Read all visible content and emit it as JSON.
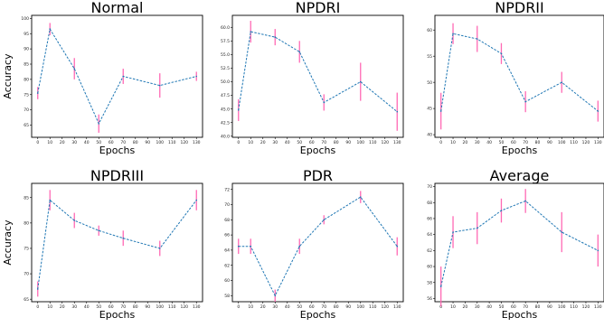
{
  "chart_data": [
    {
      "type": "line",
      "title": "Normal",
      "xlabel": "Epochs",
      "ylabel": "Accuracy",
      "x": [
        0,
        10,
        30,
        50,
        70,
        100,
        130
      ],
      "values": [
        75.5,
        96.5,
        83.5,
        65.5,
        81.0,
        78.0,
        81.0
      ],
      "errors": [
        2.0,
        2.0,
        3.5,
        3.0,
        2.5,
        4.0,
        1.5
      ],
      "xlim": [
        -5,
        135
      ],
      "ylim": [
        61,
        101
      ],
      "xticks": [
        0,
        10,
        20,
        30,
        40,
        50,
        60,
        70,
        80,
        90,
        100,
        110,
        120,
        130
      ],
      "yticks": [
        65,
        70,
        75,
        80,
        85,
        90,
        95,
        100
      ]
    },
    {
      "type": "line",
      "title": "NPDRI",
      "xlabel": "Epochs",
      "ylabel": "",
      "x": [
        0,
        10,
        30,
        50,
        70,
        100,
        130
      ],
      "values": [
        44.8,
        59.2,
        58.2,
        55.5,
        46.2,
        50.0,
        44.5
      ],
      "errors": [
        2.0,
        2.0,
        1.5,
        2.0,
        1.5,
        3.5,
        3.5
      ],
      "xlim": [
        -5,
        135
      ],
      "ylim": [
        39.8,
        62.2
      ],
      "xticks": [
        0,
        10,
        20,
        30,
        40,
        50,
        60,
        70,
        80,
        90,
        100,
        110,
        120,
        130
      ],
      "yticks": [
        40.0,
        42.5,
        45.0,
        47.5,
        50.0,
        52.5,
        55.0,
        57.5,
        60.0
      ]
    },
    {
      "type": "line",
      "title": "NPDRII",
      "xlabel": "Epochs",
      "ylabel": "",
      "x": [
        0,
        10,
        30,
        50,
        70,
        100,
        130
      ],
      "values": [
        44.5,
        59.3,
        58.3,
        55.5,
        46.3,
        50.0,
        44.5
      ],
      "errors": [
        3.5,
        2.0,
        2.5,
        2.0,
        2.0,
        2.0,
        2.0
      ],
      "xlim": [
        -5,
        135
      ],
      "ylim": [
        39.5,
        62.8
      ],
      "xticks": [
        0,
        10,
        20,
        30,
        40,
        50,
        60,
        70,
        80,
        90,
        100,
        110,
        120,
        130
      ],
      "yticks": [
        40,
        45,
        50,
        55,
        60
      ]
    },
    {
      "type": "line",
      "title": "NPDRIII",
      "xlabel": "Epochs",
      "ylabel": "Accuracy",
      "x": [
        0,
        10,
        30,
        50,
        70,
        100,
        130
      ],
      "values": [
        67.0,
        84.5,
        80.5,
        78.5,
        77.0,
        75.0,
        84.5
      ],
      "errors": [
        1.5,
        2.0,
        1.5,
        1.0,
        1.5,
        1.5,
        2.0
      ],
      "xlim": [
        -5,
        135
      ],
      "ylim": [
        64.5,
        87.8
      ],
      "xticks": [
        0,
        10,
        20,
        30,
        40,
        50,
        60,
        70,
        80,
        90,
        100,
        110,
        120,
        130
      ],
      "yticks": [
        65,
        70,
        75,
        80,
        85
      ]
    },
    {
      "type": "line",
      "title": "PDR",
      "xlabel": "Epochs",
      "ylabel": "",
      "x": [
        0,
        10,
        30,
        50,
        70,
        100,
        130
      ],
      "values": [
        64.5,
        64.5,
        58.0,
        64.5,
        68.0,
        71.0,
        64.5
      ],
      "errors": [
        1.0,
        1.0,
        0.8,
        1.0,
        0.6,
        0.8,
        1.2
      ],
      "xlim": [
        -5,
        135
      ],
      "ylim": [
        57.2,
        72.8
      ],
      "xticks": [
        0,
        10,
        20,
        30,
        40,
        50,
        60,
        70,
        80,
        90,
        100,
        110,
        120,
        130
      ],
      "yticks": [
        58,
        60,
        62,
        64,
        66,
        68,
        70,
        72
      ]
    },
    {
      "type": "line",
      "title": "Average",
      "xlabel": "Epochs",
      "ylabel": "",
      "x": [
        0,
        10,
        30,
        50,
        70,
        100,
        130
      ],
      "values": [
        57.5,
        64.3,
        64.8,
        67.0,
        68.2,
        64.3,
        62.0
      ],
      "errors": [
        2.5,
        2.0,
        2.0,
        1.5,
        1.5,
        2.5,
        2.0
      ],
      "xlim": [
        -5,
        135
      ],
      "ylim": [
        55.6,
        70.4
      ],
      "xticks": [
        0,
        10,
        20,
        30,
        40,
        50,
        60,
        70,
        80,
        90,
        100,
        110,
        120,
        130
      ],
      "yticks": [
        56,
        58,
        60,
        62,
        64,
        66,
        68,
        70
      ]
    }
  ],
  "colors": {
    "line": "#1f77b4",
    "error_bar": "#ff69b4",
    "axes": "#000000"
  }
}
